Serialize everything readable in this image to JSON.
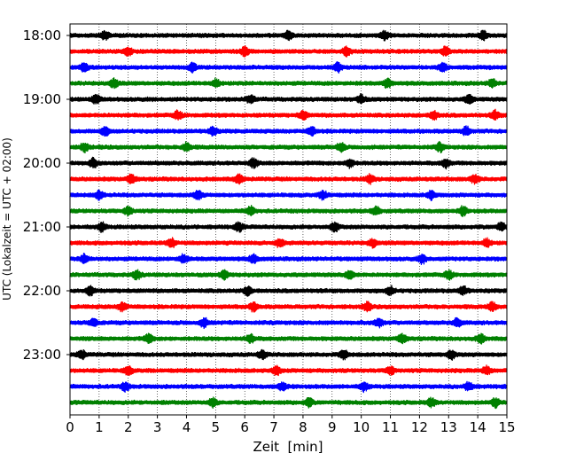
{
  "chart_data": {
    "type": "line",
    "title": "",
    "xlabel": "Zeit  [min]",
    "ylabel": "UTC (Lokalzeit = UTC + 02:00)",
    "xlim": [
      0,
      15
    ],
    "x_ticks": [
      "0",
      "1",
      "2",
      "3",
      "4",
      "5",
      "6",
      "7",
      "8",
      "9",
      "10",
      "11",
      "12",
      "13",
      "14",
      "15"
    ],
    "y_ticks": [
      {
        "label": "18:00",
        "trace": 0
      },
      {
        "label": "19:00",
        "trace": 4
      },
      {
        "label": "20:00",
        "trace": 8
      },
      {
        "label": "21:00",
        "trace": 12
      },
      {
        "label": "22:00",
        "trace": 16
      },
      {
        "label": "23:00",
        "trace": 20
      }
    ],
    "grid": "vertical dotted at each minute",
    "trace_interval_min": 15,
    "trace_count": 24,
    "start_time": "18:00",
    "colors": [
      "#000000",
      "#ff0000",
      "#0000ff",
      "#008000"
    ],
    "events": [
      [
        1.2,
        7.5,
        10.8,
        14.2
      ],
      [
        2.0,
        6.0,
        9.5,
        12.9
      ],
      [
        0.5,
        4.2,
        9.2,
        12.8
      ],
      [
        1.5,
        5.0,
        10.9,
        14.5
      ],
      [
        0.9,
        6.2,
        10.0,
        13.7
      ],
      [
        3.7,
        8.0,
        12.5,
        14.6
      ],
      [
        1.2,
        4.9,
        8.3,
        13.6
      ],
      [
        0.5,
        4.0,
        9.3,
        12.7
      ],
      [
        0.8,
        6.3,
        9.6,
        12.9
      ],
      [
        2.1,
        5.8,
        10.3,
        13.9
      ],
      [
        1.0,
        4.4,
        8.7,
        12.4
      ],
      [
        2.0,
        6.2,
        10.5,
        13.5
      ],
      [
        1.1,
        5.8,
        9.1,
        14.8
      ],
      [
        3.5,
        7.2,
        10.4,
        14.3
      ],
      [
        0.5,
        3.9,
        6.3,
        12.1
      ],
      [
        2.3,
        5.3,
        9.6,
        13.0
      ],
      [
        0.7,
        6.1,
        11.0,
        13.5
      ],
      [
        1.8,
        6.3,
        10.2,
        14.5
      ],
      [
        0.8,
        4.6,
        10.6,
        13.3
      ],
      [
        2.7,
        6.2,
        11.4,
        14.1
      ],
      [
        0.4,
        6.6,
        9.4,
        13.1
      ],
      [
        2.0,
        7.1,
        11.0,
        14.3
      ],
      [
        1.9,
        7.3,
        10.1,
        13.7
      ],
      [
        4.9,
        8.2,
        12.4,
        14.6
      ]
    ]
  }
}
